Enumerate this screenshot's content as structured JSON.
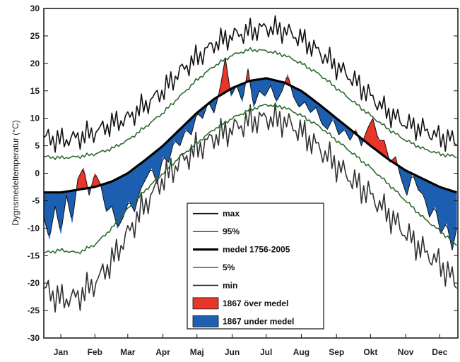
{
  "chart_data": {
    "type": "line",
    "title": "",
    "xlabel": "",
    "ylabel": "Dygnsmedeltemperatur (°C)",
    "ylim": [
      -30,
      30
    ],
    "xlim": [
      0,
      365
    ],
    "grid": false,
    "legend_placement": "bottom-center",
    "yticks": [
      -30,
      -25,
      -20,
      -15,
      -10,
      -5,
      0,
      5,
      10,
      15,
      20,
      25,
      30
    ],
    "months": [
      "Jan",
      "Feb",
      "Mar",
      "Apr",
      "Maj",
      "Jun",
      "Jul",
      "Aug",
      "Sep",
      "Okt",
      "Nov",
      "Dec"
    ],
    "month_centers_day": [
      15,
      45,
      74,
      105,
      135,
      166,
      196,
      227,
      258,
      288,
      319,
      349
    ],
    "colors": {
      "max": "#111111",
      "p95": "#2e6b2e",
      "median": "#000000",
      "p5": "#2e6b2e",
      "min": "#333333",
      "over": "#e8372a",
      "under": "#1d5fb0"
    },
    "legend": [
      {
        "key": "max",
        "label": "max",
        "style": "line-thin"
      },
      {
        "key": "p95",
        "label": "95%",
        "style": "line-green"
      },
      {
        "key": "median",
        "label": "medel 1756-2005",
        "style": "line-thick"
      },
      {
        "key": "p5",
        "label": "5%",
        "style": "line-green"
      },
      {
        "key": "min",
        "label": "min",
        "style": "line-thin"
      },
      {
        "key": "over",
        "label": "1867 över medel",
        "style": "patch-red"
      },
      {
        "key": "under",
        "label": "1867 under medel",
        "style": "patch-blue"
      }
    ],
    "series": [
      {
        "key": "median",
        "days": [
          0,
          15,
          30,
          45,
          60,
          74,
          90,
          105,
          120,
          135,
          150,
          166,
          181,
          196,
          212,
          227,
          243,
          258,
          273,
          288,
          304,
          319,
          334,
          349,
          364
        ],
        "values": [
          -3.5,
          -3.5,
          -3.0,
          -2.5,
          -1.5,
          0.0,
          2.5,
          5.0,
          8.0,
          11.0,
          13.5,
          15.5,
          16.8,
          17.3,
          16.5,
          15.0,
          12.5,
          10.0,
          7.5,
          5.0,
          2.5,
          0.5,
          -1.0,
          -2.5,
          -3.5
        ]
      },
      {
        "key": "p95",
        "days": [
          0,
          15,
          30,
          45,
          60,
          74,
          90,
          105,
          120,
          135,
          150,
          166,
          181,
          196,
          212,
          227,
          243,
          258,
          273,
          288,
          304,
          319,
          334,
          349,
          364
        ],
        "values": [
          3.0,
          2.8,
          3.0,
          3.5,
          4.5,
          6.0,
          8.5,
          11.0,
          14.0,
          17.0,
          19.5,
          21.5,
          22.5,
          22.3,
          21.5,
          20.0,
          18.0,
          15.5,
          13.0,
          10.5,
          8.0,
          6.0,
          4.5,
          3.5,
          3.0
        ]
      },
      {
        "key": "p5",
        "days": [
          0,
          15,
          30,
          45,
          60,
          74,
          90,
          105,
          120,
          135,
          150,
          166,
          181,
          196,
          212,
          227,
          243,
          258,
          273,
          288,
          304,
          319,
          334,
          349,
          364
        ],
        "values": [
          -14.5,
          -14.0,
          -14.5,
          -13.0,
          -10.0,
          -6.5,
          -3.0,
          0.0,
          3.0,
          5.5,
          8.0,
          10.0,
          11.5,
          12.5,
          12.0,
          10.5,
          8.5,
          6.0,
          3.5,
          1.0,
          -2.0,
          -5.0,
          -8.0,
          -10.5,
          -13.0
        ]
      },
      {
        "key": "max",
        "days": [
          0,
          15,
          30,
          45,
          60,
          74,
          90,
          105,
          120,
          135,
          150,
          166,
          181,
          196,
          212,
          227,
          243,
          258,
          273,
          288,
          304,
          319,
          334,
          349,
          364
        ],
        "values": [
          6.5,
          6.0,
          6.5,
          7.5,
          9.0,
          10.0,
          12.5,
          15.0,
          18.5,
          21.0,
          23.5,
          25.0,
          25.8,
          26.5,
          26.0,
          24.5,
          22.0,
          19.5,
          17.0,
          14.0,
          11.0,
          9.0,
          8.0,
          6.5,
          6.0
        ]
      },
      {
        "key": "min",
        "days": [
          0,
          15,
          30,
          45,
          60,
          74,
          90,
          105,
          120,
          135,
          150,
          166,
          181,
          196,
          212,
          227,
          243,
          258,
          273,
          288,
          304,
          319,
          334,
          349,
          364
        ],
        "values": [
          -21.0,
          -23.0,
          -22.5,
          -20.0,
          -16.0,
          -11.0,
          -5.5,
          -1.0,
          2.0,
          4.5,
          6.5,
          8.0,
          9.5,
          10.0,
          9.5,
          7.5,
          4.5,
          1.5,
          -1.5,
          -4.0,
          -7.5,
          -11.0,
          -14.0,
          -16.5,
          -20.0
        ]
      },
      {
        "key": "obs1867",
        "days": [
          0,
          5,
          10,
          15,
          20,
          25,
          30,
          35,
          40,
          45,
          50,
          55,
          60,
          65,
          70,
          75,
          80,
          85,
          90,
          95,
          100,
          105,
          110,
          115,
          120,
          125,
          130,
          135,
          140,
          145,
          150,
          155,
          160,
          165,
          170,
          175,
          180,
          185,
          190,
          195,
          200,
          205,
          210,
          215,
          220,
          225,
          230,
          235,
          240,
          245,
          250,
          255,
          260,
          265,
          270,
          275,
          280,
          285,
          290,
          295,
          300,
          305,
          310,
          315,
          320,
          325,
          330,
          335,
          340,
          345,
          350,
          355,
          360,
          364
        ],
        "values": [
          -8,
          -12,
          -6,
          -11,
          -4,
          -9,
          -1,
          1,
          -4,
          0,
          -2,
          -7,
          -6,
          -10,
          -8,
          -5,
          -7,
          -3,
          -1,
          1,
          -2,
          3,
          2,
          6,
          5,
          8,
          7,
          11,
          10,
          13,
          11,
          15,
          21,
          14,
          16,
          13,
          19,
          12,
          15,
          14,
          16,
          13,
          15,
          18,
          14,
          12,
          13,
          11,
          12,
          9,
          8,
          10,
          7,
          8,
          6,
          8,
          5,
          8,
          10,
          6,
          6,
          2,
          3,
          -1,
          -4,
          0,
          -3,
          -4,
          -8,
          -6,
          -11,
          -9,
          -14,
          -10
        ]
      }
    ]
  }
}
